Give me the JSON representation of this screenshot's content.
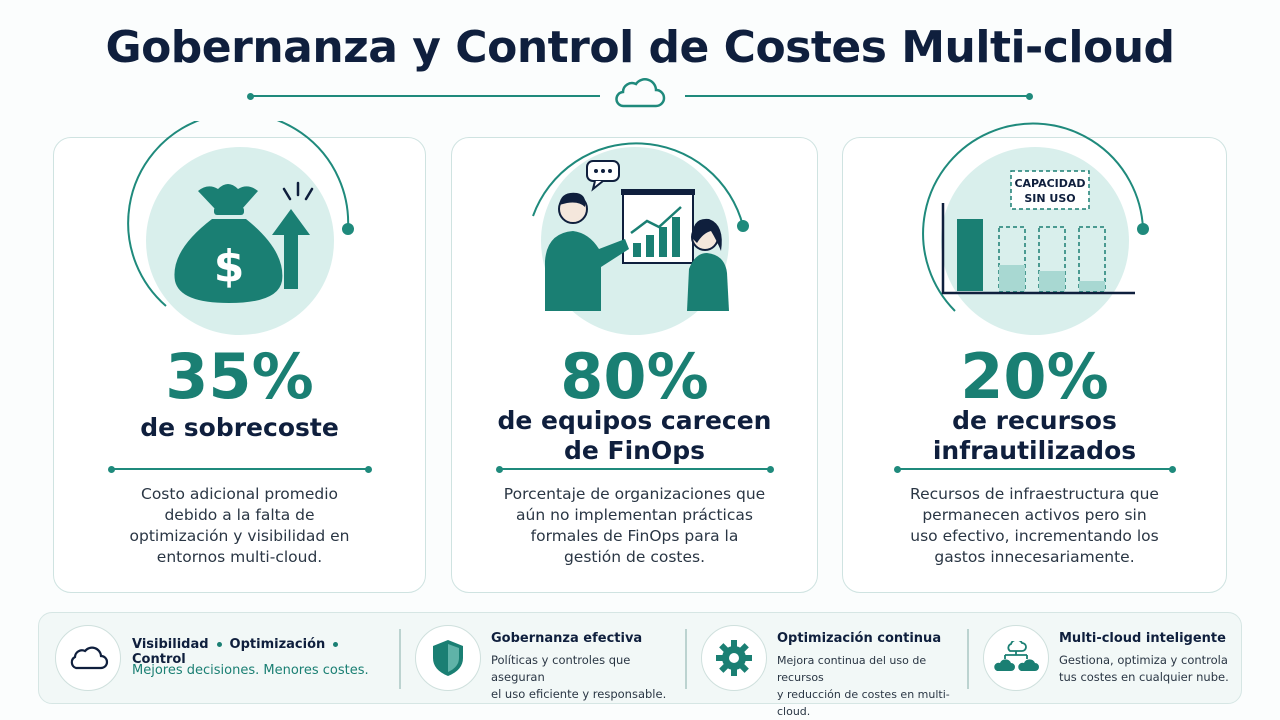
{
  "title": "Gobernanza y Control de Costes Multi-cloud",
  "colors": {
    "primary": "#1a7f73",
    "dark": "#0f1f3d",
    "light": "#d9efec"
  },
  "cards": [
    {
      "icon": "money-bag-arrow-up-icon",
      "stat": "35%",
      "label": "de sobrecoste",
      "desc": "Costo adicional promedio debido a la falta de optimización y visibilidad en entornos multi-cloud."
    },
    {
      "icon": "team-presentation-icon",
      "stat": "80%",
      "label_line1": "de equipos carecen",
      "label_line2": "de FinOps",
      "desc": "Porcentaje de organizaciones que aún no implementan prácticas formales de FinOps para la gestión de costes."
    },
    {
      "icon": "underused-capacity-chart-icon",
      "badge_line1": "CAPACIDAD",
      "badge_line2": "SIN USO",
      "stat": "20%",
      "label_line1": "de recursos",
      "label_line2": "infrautilizados",
      "desc": "Recursos de infraestructura que permanecen activos pero sin uso efectivo, incrementando los gastos innecesariamente."
    }
  ],
  "footer": {
    "pillars": [
      "Visibilidad",
      "Optimización",
      "Control"
    ],
    "tagline": "Mejores decisiones. Menores costes.",
    "items": [
      {
        "icon": "shield-icon",
        "title": "Gobernanza efectiva",
        "desc_line1": "Políticas y controles que aseguran",
        "desc_line2": "el uso eficiente y responsable."
      },
      {
        "icon": "gear-icon",
        "title": "Optimización continua",
        "desc_line1": "Mejora continua del uso de recursos",
        "desc_line2": "y reducción de costes en multi-cloud."
      },
      {
        "icon": "multi-cloud-icon",
        "title": "Multi-cloud inteligente",
        "desc_line1": "Gestiona, optimiza y controla",
        "desc_line2": "tus costes en cualquier nube."
      }
    ]
  }
}
